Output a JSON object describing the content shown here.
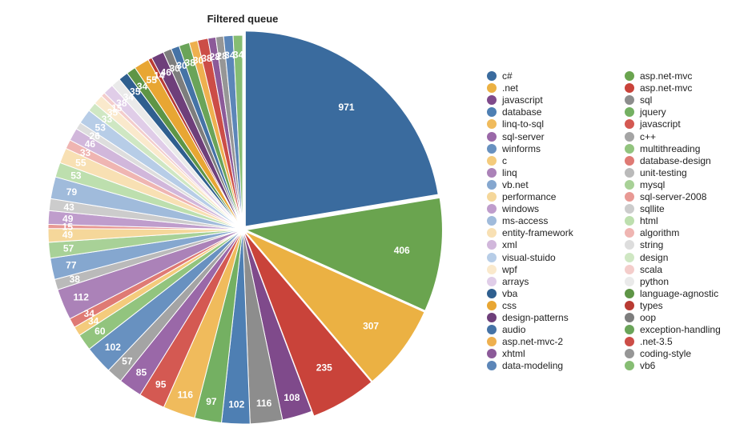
{
  "chart_data": {
    "type": "pie",
    "title": "Filtered queue",
    "categories": [
      "c#",
      "asp.net-mvc",
      ".net",
      "asp.net-mvc",
      "javascript",
      "sql",
      "database",
      "jquery",
      "linq-to-sql",
      "javascript",
      "sql-server",
      "c++",
      "winforms",
      "multithreading",
      "c",
      "database-design",
      "linq",
      "unit-testing",
      "vb.net",
      "mysql",
      "performance",
      "sql-server-2008",
      "windows",
      "sqllite",
      "ms-access",
      "html",
      "entity-framework",
      "algorithm",
      "xml",
      "string",
      "visual-stuido",
      "design",
      "wpf",
      "scala",
      "arrays",
      "python",
      "vba",
      "language-agnostic",
      "css",
      "types",
      "design-patterns",
      "oop",
      "audio",
      "exception-handling",
      "asp.net-mvc-2",
      ".net-3.5",
      "xhtml",
      "coding-style",
      "data-modeling",
      "vb6"
    ],
    "values": [
      971,
      406,
      307,
      235,
      108,
      116,
      102,
      97,
      116,
      95,
      85,
      57,
      102,
      60,
      34,
      34,
      112,
      38,
      77,
      57,
      49,
      15,
      49,
      43,
      79,
      53,
      55,
      33,
      46,
      26,
      53,
      33,
      35,
      15,
      38,
      34,
      35,
      34,
      55,
      14,
      46,
      30,
      30,
      38,
      30,
      38,
      28,
      28,
      34,
      34
    ],
    "slice_labels": [
      "971",
      "406",
      "307",
      "235",
      "108",
      "116",
      "102",
      "97",
      "116",
      "95",
      "85",
      "57",
      "102",
      "60",
      "34",
      "34",
      "112",
      "38",
      "77",
      "57",
      "49",
      "15",
      "49",
      "43",
      "79",
      "53",
      "55",
      "33",
      "46",
      "26",
      "53",
      "33",
      "35",
      "15",
      "38",
      "34",
      "35",
      "34",
      "55",
      "14",
      "46",
      "30",
      "30",
      "38",
      "30",
      "38",
      "28",
      "28",
      "34",
      "34"
    ],
    "colors": [
      "#3a6b9e",
      "#6aa44f",
      "#ebb143",
      "#c9433a",
      "#7f4a8b",
      "#8d8d8d",
      "#4e7fb3",
      "#74b062",
      "#f0bb5c",
      "#d45952",
      "#9a68a8",
      "#a4a4a4",
      "#6891c0",
      "#92c47e",
      "#f4cb7c",
      "#df7a74",
      "#ab82b8",
      "#bababa",
      "#85a7cf",
      "#a8d197",
      "#f5d79a",
      "#e89994",
      "#bf9dcc",
      "#cccccc",
      "#a0bbdb",
      "#bddfae",
      "#f8e0b3",
      "#efb5b2",
      "#d1b7db",
      "#dddddd",
      "#b7cde7",
      "#cfe7c3",
      "#fae9cc",
      "#f4cdcb",
      "#e0cde8",
      "#eaeaea",
      "#2f5f8f",
      "#5e9546",
      "#e8a633",
      "#b93b33",
      "#6e3f7a",
      "#7d7d7d",
      "#4573a6",
      "#6aa459",
      "#eeb04f",
      "#cc4d47",
      "#8c5a99",
      "#969696",
      "#5c86b8",
      "#86bd73"
    ],
    "legend_placement": "right"
  },
  "legend": {
    "col1": [
      {
        "label": "c#",
        "color": "#3a6b9e"
      },
      {
        "label": ".net",
        "color": "#ebb143"
      },
      {
        "label": "javascript",
        "color": "#7f4a8b"
      },
      {
        "label": "database",
        "color": "#4e7fb3"
      },
      {
        "label": "linq-to-sql",
        "color": "#f0bb5c"
      },
      {
        "label": "sql-server",
        "color": "#9a68a8"
      },
      {
        "label": "winforms",
        "color": "#6891c0"
      },
      {
        "label": "c",
        "color": "#f4cb7c"
      },
      {
        "label": "linq",
        "color": "#ab82b8"
      },
      {
        "label": "vb.net",
        "color": "#85a7cf"
      },
      {
        "label": "performance",
        "color": "#f5d79a"
      },
      {
        "label": "windows",
        "color": "#bf9dcc"
      },
      {
        "label": "ms-access",
        "color": "#a0bbdb"
      },
      {
        "label": "entity-framework",
        "color": "#f8e0b3"
      },
      {
        "label": "xml",
        "color": "#d1b7db"
      },
      {
        "label": "visual-stuido",
        "color": "#b7cde7"
      },
      {
        "label": "wpf",
        "color": "#fae9cc"
      },
      {
        "label": "arrays",
        "color": "#e0cde8"
      },
      {
        "label": "vba",
        "color": "#2f5f8f"
      },
      {
        "label": "css",
        "color": "#e8a633"
      },
      {
        "label": "design-patterns",
        "color": "#6e3f7a"
      },
      {
        "label": "audio",
        "color": "#4573a6"
      },
      {
        "label": "asp.net-mvc-2",
        "color": "#eeb04f"
      },
      {
        "label": "xhtml",
        "color": "#8c5a99"
      },
      {
        "label": "data-modeling",
        "color": "#5c86b8"
      }
    ],
    "col2": [
      {
        "label": "asp.net-mvc",
        "color": "#6aa44f"
      },
      {
        "label": "asp.net-mvc",
        "color": "#c9433a"
      },
      {
        "label": "sql",
        "color": "#8d8d8d"
      },
      {
        "label": "jquery",
        "color": "#74b062"
      },
      {
        "label": "javascript",
        "color": "#d45952"
      },
      {
        "label": "c++",
        "color": "#a4a4a4"
      },
      {
        "label": "multithreading",
        "color": "#92c47e"
      },
      {
        "label": "database-design",
        "color": "#df7a74"
      },
      {
        "label": "unit-testing",
        "color": "#bababa"
      },
      {
        "label": "mysql",
        "color": "#a8d197"
      },
      {
        "label": "sql-server-2008",
        "color": "#e89994"
      },
      {
        "label": "sqllite",
        "color": "#cccccc"
      },
      {
        "label": "html",
        "color": "#bddfae"
      },
      {
        "label": "algorithm",
        "color": "#efb5b2"
      },
      {
        "label": "string",
        "color": "#dddddd"
      },
      {
        "label": "design",
        "color": "#cfe7c3"
      },
      {
        "label": "scala",
        "color": "#f4cdcb"
      },
      {
        "label": "python",
        "color": "#eaeaea"
      },
      {
        "label": "language-agnostic",
        "color": "#5e9546"
      },
      {
        "label": "types",
        "color": "#b93b33"
      },
      {
        "label": "oop",
        "color": "#7d7d7d"
      },
      {
        "label": "exception-handling",
        "color": "#6aa459"
      },
      {
        "label": ".net-3.5",
        "color": "#cc4d47"
      },
      {
        "label": "coding-style",
        "color": "#969696"
      },
      {
        "label": "vb6",
        "color": "#86bd73"
      }
    ]
  }
}
